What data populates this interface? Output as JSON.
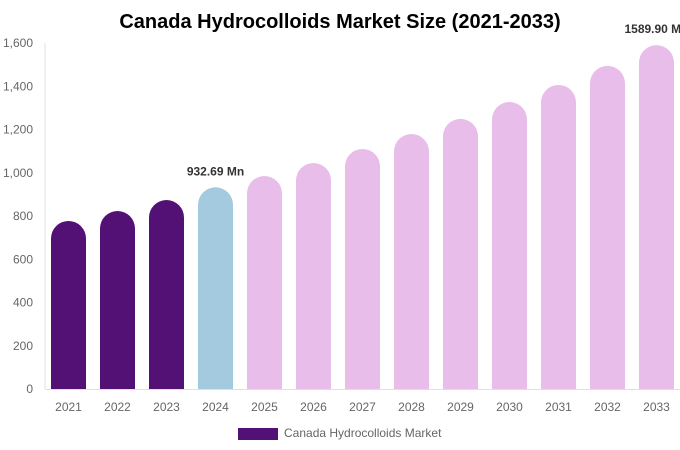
{
  "chart_data": {
    "type": "bar",
    "title": "Canada Hydrocolloids Market Size (2021-2033)",
    "xlabel": "",
    "ylabel": "",
    "ylim": [
      0,
      1600
    ],
    "yticks": [
      "0",
      "200",
      "400",
      "600",
      "800",
      "1,000",
      "1,200",
      "1,400",
      "1,600"
    ],
    "ytick_values": [
      0,
      200,
      400,
      600,
      800,
      1000,
      1200,
      1400,
      1600
    ],
    "grid": false,
    "legend_position": "bottom",
    "categories": [
      "2021",
      "2022",
      "2023",
      "2024",
      "2025",
      "2026",
      "2027",
      "2028",
      "2029",
      "2030",
      "2031",
      "2032",
      "2033"
    ],
    "series": [
      {
        "name": "Canada Hydrocolloids Market",
        "values": [
          777,
          823,
          874,
          932.69,
          985,
          1045,
          1110,
          1179,
          1249,
          1327,
          1406,
          1494,
          1589.9
        ],
        "colors": [
          "#541175",
          "#541175",
          "#541175",
          "#a3cadf",
          "#e8bde9",
          "#e8bde9",
          "#e8bde9",
          "#e8bde9",
          "#e8bde9",
          "#e8bde9",
          "#e8bde9",
          "#e8bde9",
          "#e8bde9"
        ]
      }
    ],
    "data_labels": [
      {
        "category": "2024",
        "text": "932.69 Mn"
      },
      {
        "category": "2033",
        "text": "1589.90 Mn"
      }
    ],
    "legend_color": "#541175"
  }
}
